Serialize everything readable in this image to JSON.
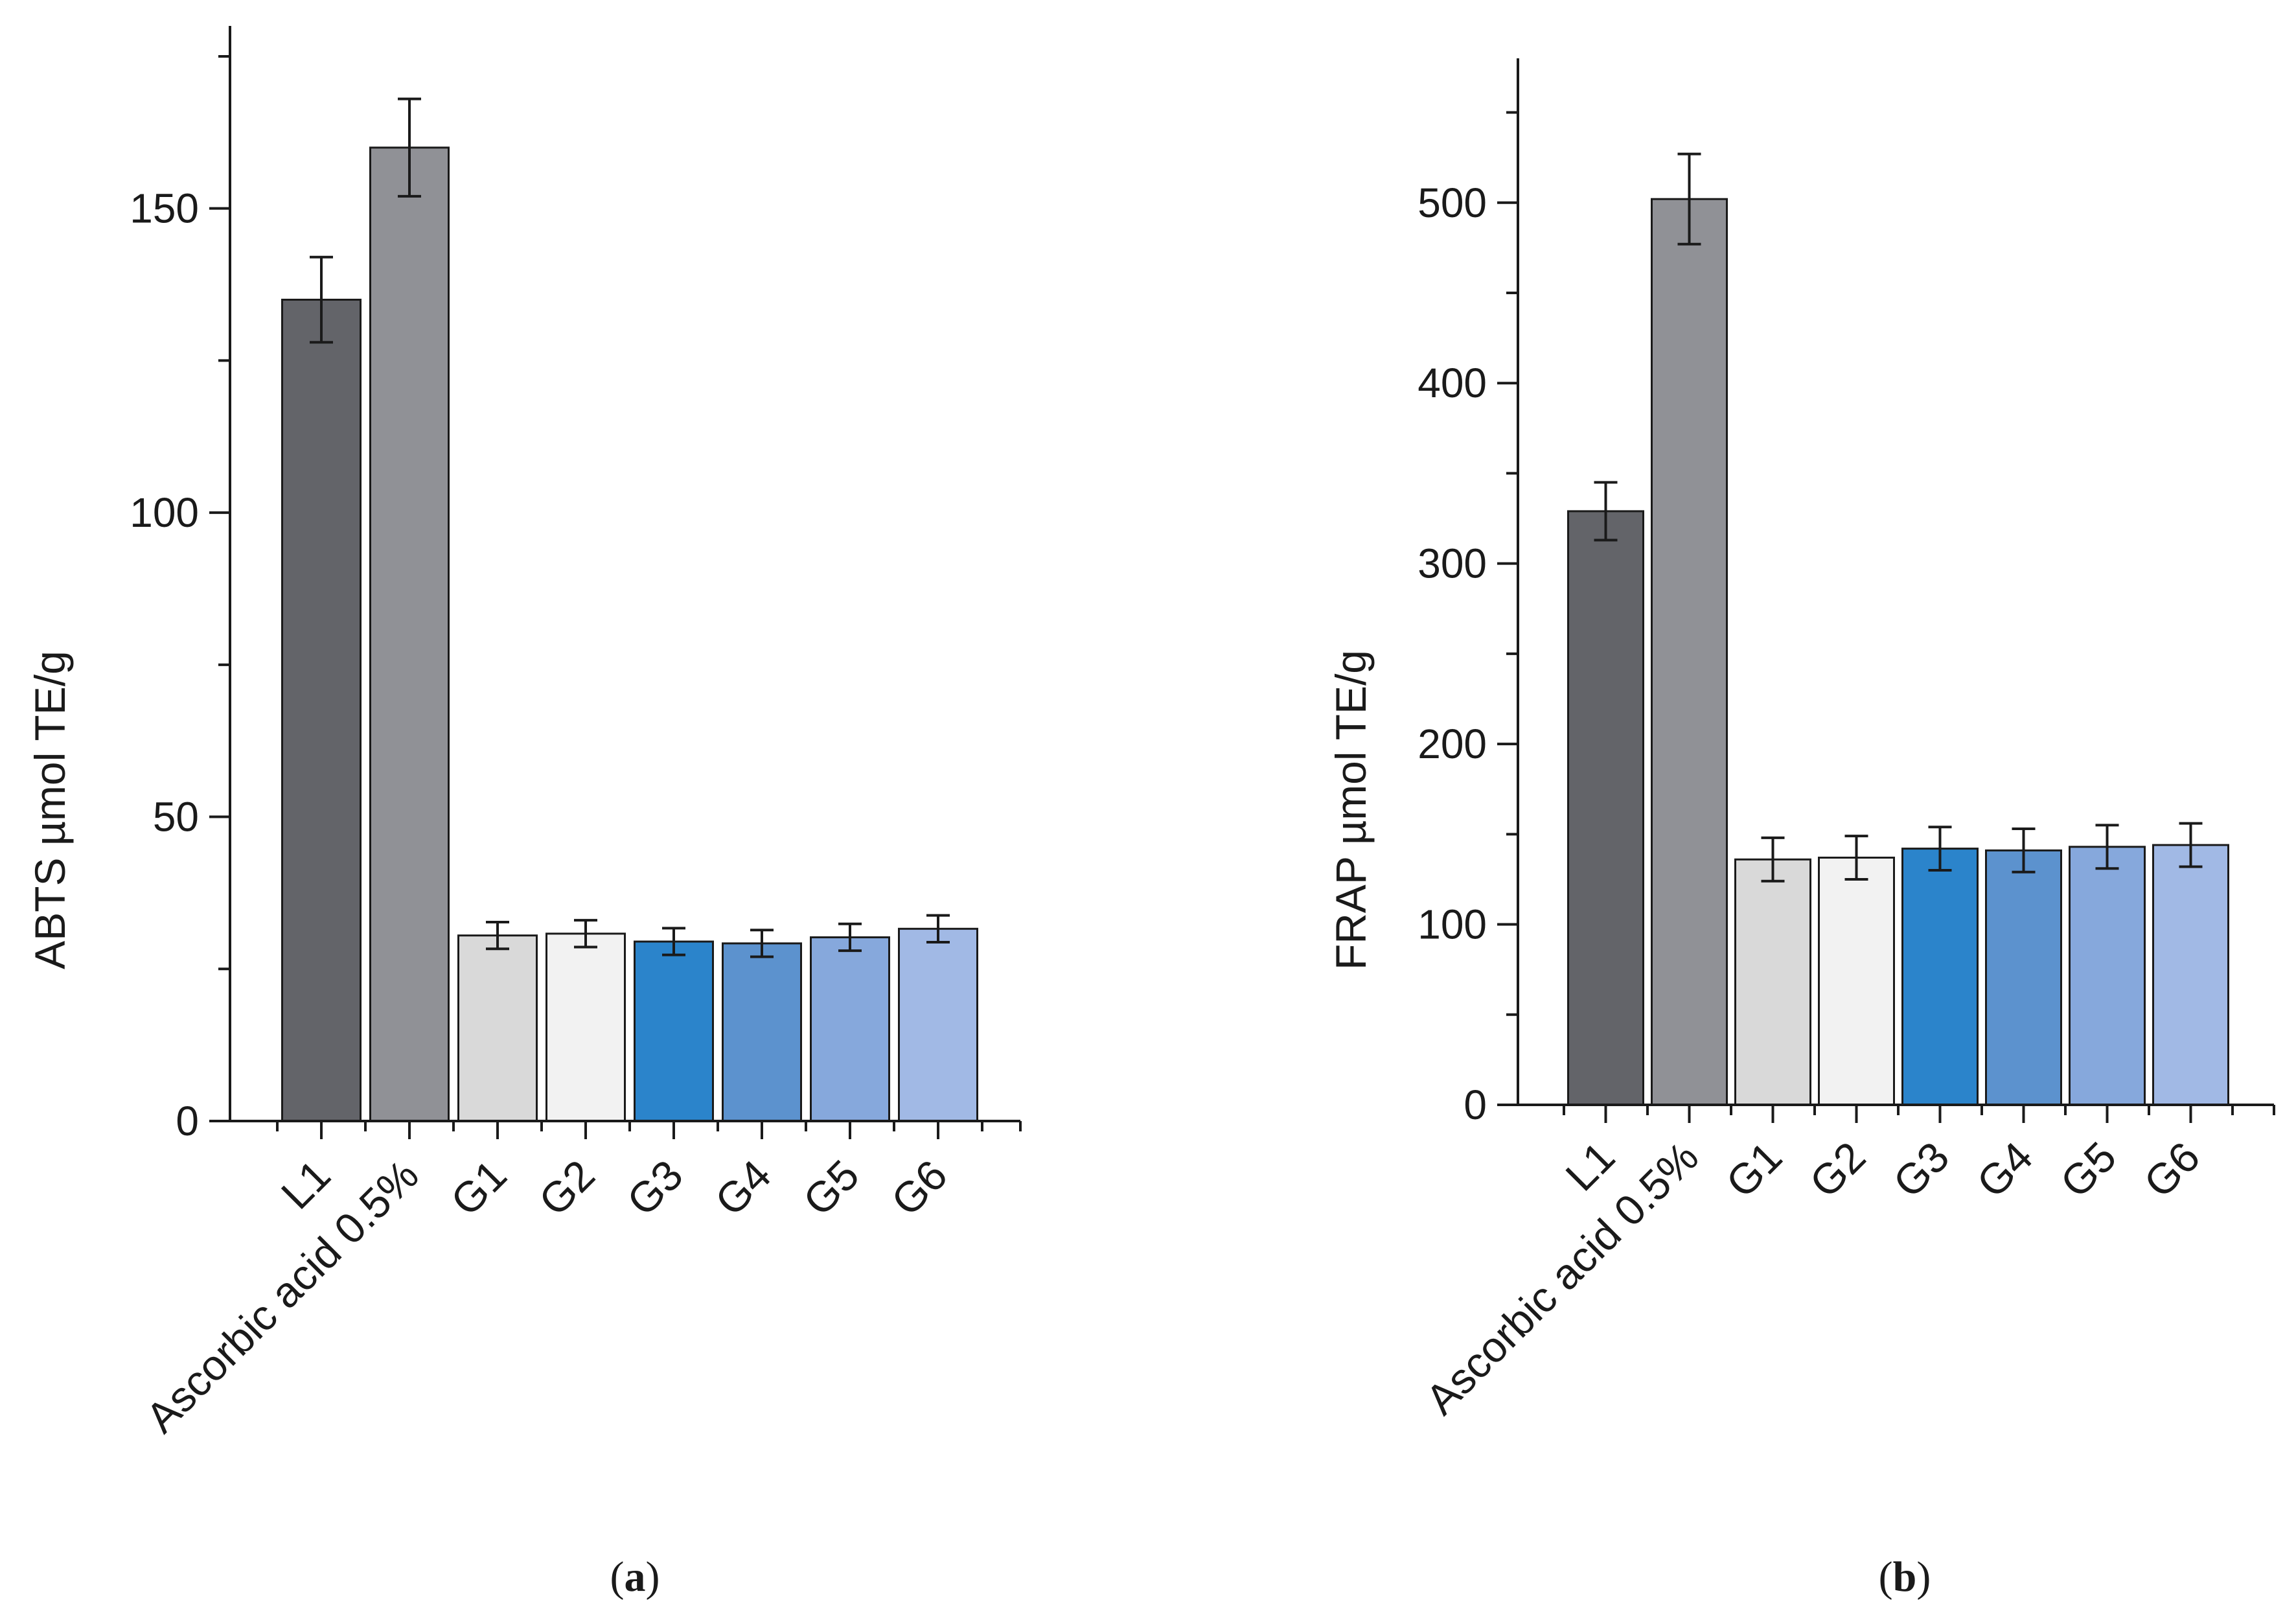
{
  "chart_data": [
    {
      "type": "bar",
      "panel": "a",
      "panel_label": {
        "open": "(",
        "letter": "a",
        "close": ")"
      },
      "ylabel": "ABTS µmol TE/g",
      "xlabel": "",
      "ylim": [
        0,
        180
      ],
      "yticks": [
        0,
        50,
        100,
        150
      ],
      "grid": false,
      "categories": [
        "L1",
        "Ascorbic acid 0.5%",
        "G1",
        "G2",
        "G3",
        "G4",
        "G5",
        "G6"
      ],
      "values": [
        135,
        160,
        30.5,
        30.8,
        29.5,
        29.2,
        30.2,
        31.6
      ],
      "errors": [
        7,
        8,
        2.2,
        2.2,
        2.2,
        2.2,
        2.2,
        2.2
      ],
      "colors": [
        "#636469",
        "#909196",
        "#d9d9d9",
        "#f2f2f2",
        "#2b84cb",
        "#5c92ce",
        "#86a8dc",
        "#a1b9e5"
      ]
    },
    {
      "type": "bar",
      "panel": "b",
      "panel_label": {
        "open": "(",
        "letter": "b",
        "close": ")"
      },
      "ylabel": "FRAP µmol TE/g",
      "xlabel": "",
      "ylim": [
        0,
        580
      ],
      "yticks": [
        0,
        100,
        200,
        300,
        400,
        500
      ],
      "grid": false,
      "categories": [
        "L1",
        "Ascorbic acid 0.5%",
        "G1",
        "G2",
        "G3",
        "G4",
        "G5",
        "G6"
      ],
      "values": [
        329,
        502,
        136,
        137,
        142,
        141,
        143,
        144
      ],
      "errors": [
        16,
        25,
        12,
        12,
        12,
        12,
        12,
        12
      ],
      "colors": [
        "#636469",
        "#909196",
        "#d9d9d9",
        "#f2f2f2",
        "#2b84cb",
        "#5c92ce",
        "#86a8dc",
        "#a1b9e5"
      ]
    }
  ]
}
